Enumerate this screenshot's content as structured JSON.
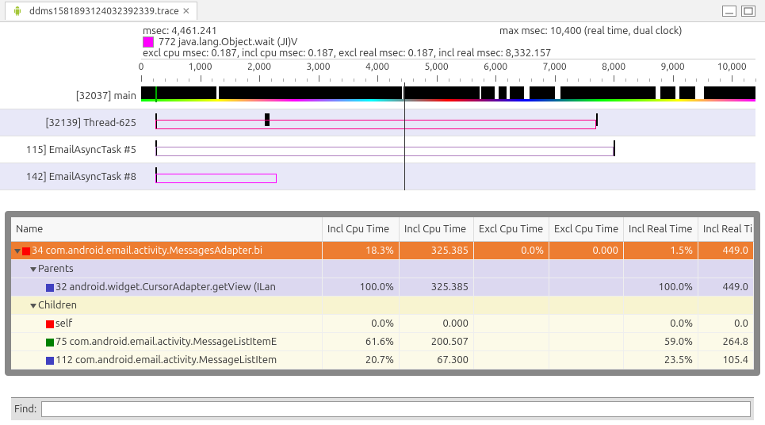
{
  "window": {
    "tab_title": "ddms1581893124032392339.trace",
    "close_glyph": "✕"
  },
  "info": {
    "msec_label": "msec: 4,461.241",
    "max_msec_label": "max msec: 10,400 (real time, dual clock)",
    "method_label": "772 java.lang.Object.wait (JI)V",
    "method_color": "#ff00ff",
    "timings_line": "excl cpu msec: 0.187, incl cpu msec: 0.187, excl real msec: 0.187, incl real msec: 8,332.157"
  },
  "ruler": {
    "min": 0,
    "max": 10400,
    "labels": [
      "0",
      "1,000",
      "2,000",
      "3,000",
      "4,000",
      "5,000",
      "6,000",
      "7,000",
      "8,000",
      "9,000",
      "10,000"
    ],
    "cursor_msec": 4461
  },
  "threads": [
    {
      "label": "[32037] main",
      "alt": false
    },
    {
      "label": "[32139] Thread-625",
      "alt": true
    },
    {
      "label": "115] EmailAsyncTask #5",
      "alt": false
    },
    {
      "label": "142] EmailAsyncTask #8",
      "alt": true
    }
  ],
  "stats": {
    "columns": [
      "Name",
      "Incl Cpu Time",
      "Incl Cpu Time",
      "Excl Cpu Time",
      "Excl Cpu Time",
      "Incl Real Time",
      "Incl Real Ti"
    ],
    "rows": [
      {
        "kind": "selected",
        "indent": 0,
        "tri": true,
        "sq": "#ff0000",
        "name": "34 com.android.email.activity.MessagesAdapter.bi",
        "vals": [
          "18.3%",
          "325.385",
          "0.0%",
          "0.000",
          "1.5%",
          "449.0"
        ]
      },
      {
        "kind": "parents",
        "indent": 1,
        "tri": true,
        "sq": null,
        "name": "Parents",
        "vals": [
          "",
          "",
          "",
          "",
          "",
          ""
        ]
      },
      {
        "kind": "parents",
        "indent": 2,
        "tri": false,
        "sq": "#4040c0",
        "name": "32 android.widget.CursorAdapter.getView (ILan",
        "vals": [
          "100.0%",
          "325.385",
          "",
          "",
          "100.0%",
          "449.0"
        ]
      },
      {
        "kind": "children",
        "indent": 1,
        "tri": true,
        "sq": null,
        "name": "Children",
        "vals": [
          "",
          "",
          "",
          "",
          "",
          ""
        ]
      },
      {
        "kind": "child",
        "indent": 2,
        "tri": false,
        "sq": "#ff0000",
        "name": "self",
        "vals": [
          "0.0%",
          "0.000",
          "",
          "",
          "0.0%",
          "0.0"
        ]
      },
      {
        "kind": "child",
        "indent": 2,
        "tri": false,
        "sq": "#008000",
        "name": "75 com.android.email.activity.MessageListItemE",
        "vals": [
          "61.6%",
          "200.507",
          "",
          "",
          "59.0%",
          "264.8"
        ]
      },
      {
        "kind": "child",
        "indent": 2,
        "tri": false,
        "sq": "#4040c0",
        "name": "112 com.android.email.activity.MessageListItem",
        "vals": [
          "20.7%",
          "67.300",
          "",
          "",
          "23.5%",
          "105.4"
        ]
      }
    ]
  },
  "find": {
    "label": "Find:",
    "value": ""
  }
}
